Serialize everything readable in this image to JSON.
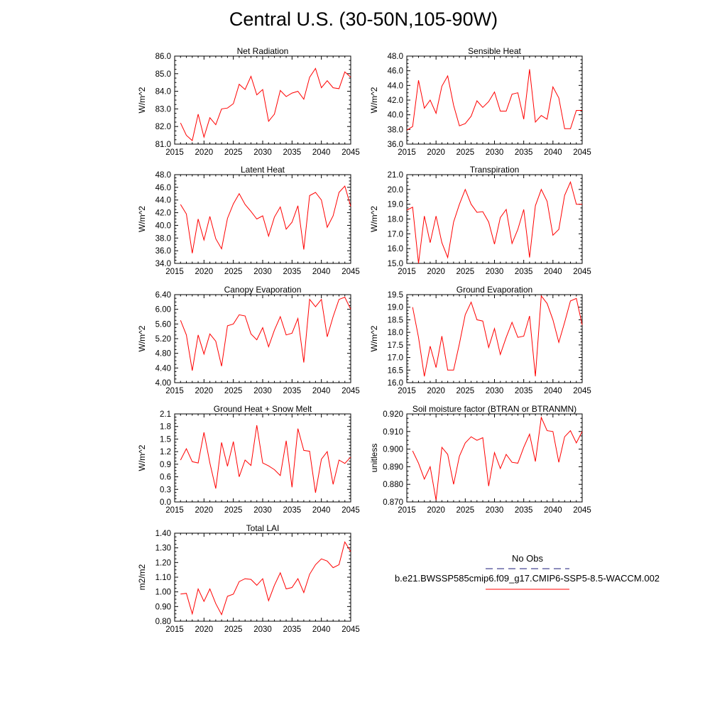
{
  "page": {
    "title": "Central U.S. (30-50N,105-90W)"
  },
  "legend": {
    "obs_label": "No Obs",
    "model_label": "b.e21.BWSSP585cmip6.f09_g17.CMIP6-SSP5-8.5-WACCM.002",
    "obs_color": "#1a1a7a",
    "model_color": "#ff0000"
  },
  "chart_data": [
    {
      "type": "line",
      "title": "Net Radiation",
      "ylabel": "W/m^2",
      "xlim": [
        2015,
        2045
      ],
      "ylim": [
        81.0,
        86.0
      ],
      "yticks": [
        "81.0",
        "82.0",
        "83.0",
        "84.0",
        "85.0",
        "86.0"
      ],
      "xticks": [
        "2015",
        "2020",
        "2025",
        "2030",
        "2035",
        "2040",
        "2045"
      ],
      "x": [
        2016,
        2017,
        2018,
        2019,
        2020,
        2021,
        2022,
        2023,
        2024,
        2025,
        2026,
        2027,
        2028,
        2029,
        2030,
        2031,
        2032,
        2033,
        2034,
        2035,
        2036,
        2037,
        2038,
        2039,
        2040,
        2041,
        2042,
        2043,
        2044,
        2045
      ],
      "values": [
        82.2,
        81.5,
        81.2,
        82.7,
        81.4,
        82.5,
        82.1,
        83.0,
        83.05,
        83.3,
        84.4,
        84.1,
        84.85,
        83.8,
        84.1,
        82.3,
        82.7,
        84.05,
        83.7,
        83.9,
        84.0,
        83.55,
        84.8,
        85.3,
        84.2,
        84.6,
        84.2,
        84.15,
        85.1,
        84.8
      ]
    },
    {
      "type": "line",
      "title": "Sensible Heat",
      "ylabel": "W/m^2",
      "xlim": [
        2015,
        2045
      ],
      "ylim": [
        36.0,
        48.0
      ],
      "yticks": [
        "36.0",
        "38.0",
        "40.0",
        "42.0",
        "44.0",
        "46.0",
        "48.0"
      ],
      "xticks": [
        "2015",
        "2020",
        "2025",
        "2030",
        "2035",
        "2040",
        "2045"
      ],
      "x": [
        2015,
        2016,
        2017,
        2018,
        2019,
        2020,
        2021,
        2022,
        2023,
        2024,
        2025,
        2026,
        2027,
        2028,
        2029,
        2030,
        2031,
        2032,
        2033,
        2034,
        2035,
        2036,
        2037,
        2038,
        2039,
        2040,
        2041,
        2042,
        2043,
        2044,
        2045
      ],
      "values": [
        37.9,
        38.4,
        44.7,
        40.9,
        42.0,
        40.2,
        43.9,
        45.3,
        41.3,
        38.5,
        38.8,
        39.8,
        41.9,
        41.0,
        41.8,
        43.1,
        40.5,
        40.5,
        42.8,
        43.0,
        39.4,
        46.2,
        39.0,
        39.9,
        39.4,
        43.8,
        42.3,
        38.1,
        38.1,
        40.6,
        40.6
      ]
    },
    {
      "type": "line",
      "title": "Latent Heat",
      "ylabel": "W/m^2",
      "xlim": [
        2015,
        2045
      ],
      "ylim": [
        34.0,
        48.0
      ],
      "yticks": [
        "34.0",
        "36.0",
        "38.0",
        "40.0",
        "42.0",
        "44.0",
        "46.0",
        "48.0"
      ],
      "xticks": [
        "2015",
        "2020",
        "2025",
        "2030",
        "2035",
        "2040",
        "2045"
      ],
      "x": [
        2016,
        2017,
        2018,
        2019,
        2020,
        2021,
        2022,
        2023,
        2024,
        2025,
        2026,
        2027,
        2028,
        2029,
        2030,
        2031,
        2032,
        2033,
        2034,
        2035,
        2036,
        2037,
        2038,
        2039,
        2040,
        2041,
        2042,
        2043,
        2044,
        2045
      ],
      "values": [
        43.3,
        41.8,
        35.6,
        41.0,
        37.7,
        41.4,
        37.9,
        36.3,
        41.1,
        43.4,
        45.0,
        43.3,
        42.2,
        41.0,
        41.5,
        38.3,
        41.3,
        42.9,
        39.4,
        40.5,
        43.1,
        36.2,
        44.7,
        45.2,
        44.0,
        39.7,
        41.5,
        45.2,
        46.2,
        43.0
      ]
    },
    {
      "type": "line",
      "title": "Transpiration",
      "ylabel": "W/m^2",
      "xlim": [
        2015,
        2045
      ],
      "ylim": [
        15.0,
        21.0
      ],
      "yticks": [
        "15.0",
        "16.0",
        "17.0",
        "18.0",
        "19.0",
        "20.0",
        "21.0"
      ],
      "xticks": [
        "2015",
        "2020",
        "2025",
        "2030",
        "2035",
        "2040",
        "2045"
      ],
      "x": [
        2015,
        2016,
        2017,
        2018,
        2019,
        2020,
        2021,
        2022,
        2023,
        2024,
        2025,
        2026,
        2027,
        2028,
        2029,
        2030,
        2031,
        2032,
        2033,
        2034,
        2035,
        2036,
        2037,
        2038,
        2039,
        2040,
        2041,
        2042,
        2043,
        2044,
        2045
      ],
      "values": [
        18.6,
        18.8,
        15.0,
        18.2,
        16.4,
        18.2,
        16.4,
        15.4,
        17.8,
        19.0,
        20.0,
        19.0,
        18.45,
        18.5,
        17.8,
        16.3,
        18.1,
        18.65,
        16.35,
        17.3,
        18.65,
        15.4,
        18.9,
        20.0,
        19.2,
        16.9,
        17.3,
        19.6,
        20.5,
        19.0,
        19.0
      ]
    },
    {
      "type": "line",
      "title": "Canopy Evaporation",
      "ylabel": "W/m^2",
      "xlim": [
        2015,
        2045
      ],
      "ylim": [
        4.0,
        6.4
      ],
      "yticks": [
        "4.00",
        "4.40",
        "4.80",
        "5.20",
        "5.60",
        "6.00",
        "6.40"
      ],
      "xticks": [
        "2015",
        "2020",
        "2025",
        "2030",
        "2035",
        "2040",
        "2045"
      ],
      "x": [
        2016,
        2017,
        2018,
        2019,
        2020,
        2021,
        2022,
        2023,
        2024,
        2025,
        2026,
        2027,
        2028,
        2029,
        2030,
        2031,
        2032,
        2033,
        2034,
        2035,
        2036,
        2037,
        2038,
        2039,
        2040,
        2041,
        2042,
        2043,
        2044,
        2045
      ],
      "values": [
        5.7,
        5.3,
        4.33,
        5.3,
        4.78,
        5.33,
        5.13,
        4.45,
        5.55,
        5.6,
        5.85,
        5.82,
        5.33,
        5.17,
        5.5,
        4.98,
        5.43,
        5.8,
        5.3,
        5.35,
        5.75,
        4.55,
        6.27,
        6.07,
        6.27,
        5.25,
        5.8,
        6.27,
        6.33,
        6.0
      ]
    },
    {
      "type": "line",
      "title": "Ground Evaporation",
      "ylabel": "W/m^2",
      "xlim": [
        2015,
        2045
      ],
      "ylim": [
        16.0,
        19.5
      ],
      "yticks": [
        "16.0",
        "16.5",
        "17.0",
        "17.5",
        "18.0",
        "18.5",
        "19.0",
        "19.5"
      ],
      "xticks": [
        "2015",
        "2020",
        "2025",
        "2030",
        "2035",
        "2040",
        "2045"
      ],
      "x": [
        2016,
        2017,
        2018,
        2019,
        2020,
        2021,
        2022,
        2023,
        2024,
        2025,
        2026,
        2027,
        2028,
        2029,
        2030,
        2031,
        2032,
        2033,
        2034,
        2035,
        2036,
        2037,
        2038,
        2039,
        2040,
        2041,
        2042,
        2043,
        2044,
        2045
      ],
      "values": [
        19.0,
        17.8,
        16.25,
        17.45,
        16.6,
        17.85,
        16.5,
        16.5,
        17.55,
        18.7,
        19.2,
        18.5,
        18.45,
        17.4,
        18.15,
        17.12,
        17.8,
        18.4,
        17.8,
        17.85,
        18.65,
        16.25,
        19.45,
        19.15,
        18.5,
        17.6,
        18.4,
        19.25,
        19.35,
        18.3
      ]
    },
    {
      "type": "line",
      "title": "Ground Heat + Snow Melt",
      "ylabel": "W/m^2",
      "xlim": [
        2015,
        2045
      ],
      "ylim": [
        0.0,
        2.1
      ],
      "yticks": [
        "0.0",
        "0.3",
        "0.6",
        "0.9",
        "1.2",
        "1.5",
        "1.8",
        "2.1"
      ],
      "xticks": [
        "2015",
        "2020",
        "2025",
        "2030",
        "2035",
        "2040",
        "2045"
      ],
      "x": [
        2016,
        2017,
        2018,
        2019,
        2020,
        2021,
        2022,
        2023,
        2024,
        2025,
        2026,
        2027,
        2028,
        2029,
        2030,
        2031,
        2032,
        2033,
        2034,
        2035,
        2036,
        2037,
        2038,
        2039,
        2040,
        2041,
        2042,
        2043,
        2044,
        2045
      ],
      "values": [
        1.0,
        1.27,
        0.96,
        0.93,
        1.66,
        0.93,
        0.32,
        1.42,
        0.85,
        1.44,
        0.6,
        1.0,
        0.87,
        1.83,
        0.93,
        0.86,
        0.77,
        0.63,
        1.46,
        0.35,
        1.75,
        1.23,
        1.21,
        0.22,
        1.02,
        1.2,
        0.42,
        1.0,
        0.92,
        1.07
      ]
    },
    {
      "type": "line",
      "title": "Soil moisture factor (BTRAN or BTRANMN)",
      "ylabel": "unitless",
      "xlim": [
        2015,
        2045
      ],
      "ylim": [
        0.87,
        0.92
      ],
      "yticks": [
        "0.870",
        "0.880",
        "0.890",
        "0.900",
        "0.910",
        "0.920"
      ],
      "xticks": [
        "2015",
        "2020",
        "2025",
        "2030",
        "2035",
        "2040",
        "2045"
      ],
      "x": [
        2016,
        2017,
        2018,
        2019,
        2020,
        2021,
        2022,
        2023,
        2024,
        2025,
        2026,
        2027,
        2028,
        2029,
        2030,
        2031,
        2032,
        2033,
        2034,
        2035,
        2036,
        2037,
        2038,
        2039,
        2040,
        2041,
        2042,
        2043,
        2044,
        2045
      ],
      "values": [
        0.899,
        0.892,
        0.883,
        0.89,
        0.871,
        0.901,
        0.897,
        0.88,
        0.896,
        0.9035,
        0.907,
        0.905,
        0.9065,
        0.879,
        0.898,
        0.889,
        0.897,
        0.8925,
        0.892,
        0.901,
        0.9085,
        0.893,
        0.918,
        0.9105,
        0.91,
        0.8925,
        0.907,
        0.9105,
        0.9035,
        0.91
      ]
    },
    {
      "type": "line",
      "title": "Total LAI",
      "ylabel": "m2/m2",
      "xlim": [
        2015,
        2045
      ],
      "ylim": [
        0.8,
        1.4
      ],
      "yticks": [
        "0.80",
        "0.90",
        "1.00",
        "1.10",
        "1.20",
        "1.30",
        "1.40"
      ],
      "xticks": [
        "2015",
        "2020",
        "2025",
        "2030",
        "2035",
        "2040",
        "2045"
      ],
      "x": [
        2016,
        2017,
        2018,
        2019,
        2020,
        2021,
        2022,
        2023,
        2024,
        2025,
        2026,
        2027,
        2028,
        2029,
        2030,
        2031,
        2032,
        2033,
        2034,
        2035,
        2036,
        2037,
        2038,
        2039,
        2040,
        2041,
        2042,
        2043,
        2044,
        2045
      ],
      "values": [
        0.985,
        0.99,
        0.85,
        1.02,
        0.935,
        1.02,
        0.92,
        0.845,
        0.97,
        0.985,
        1.07,
        1.09,
        1.085,
        1.045,
        1.09,
        0.94,
        1.045,
        1.13,
        1.02,
        1.03,
        1.09,
        0.995,
        1.12,
        1.185,
        1.225,
        1.21,
        1.165,
        1.185,
        1.34,
        1.275
      ]
    }
  ]
}
